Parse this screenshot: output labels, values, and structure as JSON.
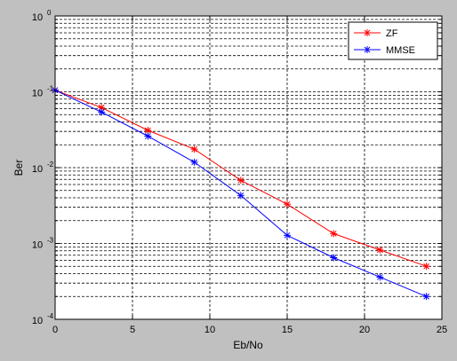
{
  "chart_data": {
    "type": "line",
    "xlabel": "Eb/No",
    "ylabel": "Ber",
    "xlim": [
      0,
      25
    ],
    "ylim": [
      0.0001,
      1
    ],
    "yscale": "log",
    "grid": true,
    "legend_position": "top-right",
    "x_ticks": [
      0,
      5,
      10,
      15,
      20,
      25
    ],
    "y_ticks": [
      {
        "value": 0.0001,
        "base": "10",
        "exp": "-4"
      },
      {
        "value": 0.001,
        "base": "10",
        "exp": "-3"
      },
      {
        "value": 0.01,
        "base": "10",
        "exp": "-2"
      },
      {
        "value": 0.1,
        "base": "10",
        "exp": "-1"
      },
      {
        "value": 1,
        "base": "10",
        "exp": "0"
      }
    ],
    "series": [
      {
        "name": "ZF",
        "color": "#ff0000",
        "marker": "star",
        "x": [
          0,
          3,
          6,
          9,
          12,
          15,
          18,
          21,
          24
        ],
        "y": [
          0.105,
          0.062,
          0.031,
          0.0175,
          0.0068,
          0.0033,
          0.00135,
          0.00082,
          0.0005
        ]
      },
      {
        "name": "MMSE",
        "color": "#0000ff",
        "marker": "star",
        "x": [
          0,
          3,
          6,
          9,
          12,
          15,
          18,
          21,
          24
        ],
        "y": [
          0.105,
          0.054,
          0.026,
          0.0118,
          0.0043,
          0.00128,
          0.00065,
          0.00036,
          0.0002
        ]
      }
    ]
  }
}
